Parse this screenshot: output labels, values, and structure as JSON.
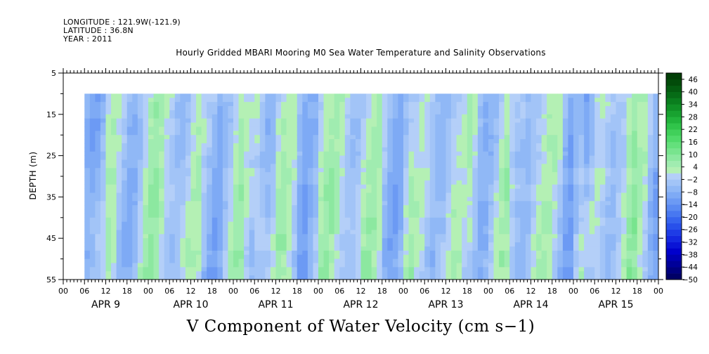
{
  "header": {
    "longitude": "LONGITUDE : 121.9W(-121.9)",
    "latitude": "LATITUDE : 36.8N",
    "year": "YEAR : 2011"
  },
  "chart_data": {
    "type": "heatmap",
    "title": "Hourly Gridded MBARI Mooring M0 Sea Water Temperature and Salinity Observations",
    "xlabel": "V Component of Water Velocity (cm s−1)",
    "ylabel": "DEPTH (m)",
    "y_ticks": [
      "5",
      "15",
      "25",
      "35",
      "45",
      "55"
    ],
    "ylim": [
      5,
      55
    ],
    "y_reversed": true,
    "x_hour_ticks": [
      "00",
      "06",
      "12",
      "18",
      "00",
      "06",
      "12",
      "18",
      "00",
      "06",
      "12",
      "18",
      "00",
      "06",
      "12",
      "18",
      "00",
      "06",
      "12",
      "18",
      "00",
      "06",
      "12",
      "18",
      "00",
      "06",
      "12",
      "18",
      "00"
    ],
    "x_day_labels": [
      "APR  9",
      "APR 10",
      "APR 11",
      "APR 12",
      "APR 13",
      "APR 14",
      "APR 15"
    ],
    "data_depth_range": [
      10,
      55
    ],
    "data_start_hour_apr9": 6,
    "colorbar": {
      "labels": [
        "46",
        "40",
        "34",
        "28",
        "22",
        "16",
        "10",
        "4",
        "−2",
        "−8",
        "−14",
        "−20",
        "−26",
        "−32",
        "−38",
        "−44",
        "−50"
      ],
      "levels": [
        -50,
        -47,
        -44,
        -41,
        -38,
        -35,
        -32,
        -29,
        -26,
        -23,
        -20,
        -17,
        -14,
        -11,
        -8,
        -5,
        -2,
        1,
        4,
        7,
        10,
        13,
        16,
        19,
        22,
        25,
        28,
        31,
        34,
        37,
        40,
        43,
        46,
        49
      ],
      "colors": [
        "#000066",
        "#00007f",
        "#000099",
        "#0000b2",
        "#0000cc",
        "#0a14d6",
        "#1428e0",
        "#1e3ce6",
        "#2850ea",
        "#3664ee",
        "#4878f0",
        "#5a8af2",
        "#6c9af4",
        "#7eaaf5",
        "#90b8f6",
        "#a2c4f7",
        "#b4cff8",
        "#b4f0b4",
        "#a0ecb0",
        "#8ce8a0",
        "#78e48e",
        "#64e07c",
        "#50da6a",
        "#40d05a",
        "#30c44a",
        "#22b43c",
        "#18a230",
        "#109026",
        "#0a7e1e",
        "#066c16",
        "#045c10",
        "#024c0a",
        "#013e06"
      ]
    }
  }
}
